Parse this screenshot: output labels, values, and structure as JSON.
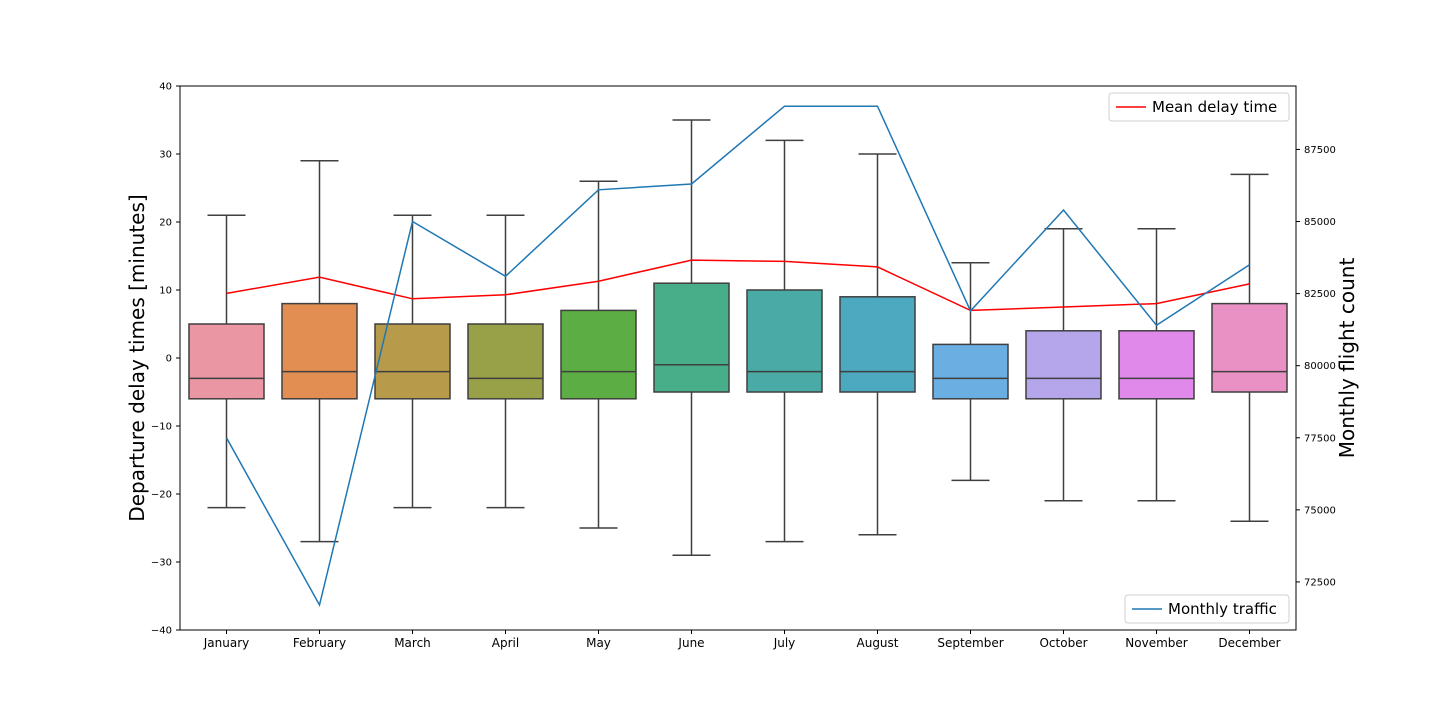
{
  "chart_data": {
    "type": "box",
    "categories": [
      "January",
      "February",
      "March",
      "April",
      "May",
      "June",
      "July",
      "August",
      "September",
      "October",
      "November",
      "December"
    ],
    "ylabel": "Departure delay times [minutes]",
    "y2label": "Monthly flight count",
    "ylim": [
      -40,
      40
    ],
    "y2lim": [
      70833,
      89700
    ],
    "yticks": [
      -40,
      -30,
      -20,
      -10,
      0,
      10,
      20,
      30,
      40
    ],
    "y2ticks": [
      72500,
      75000,
      77500,
      80000,
      82500,
      85000,
      87500
    ],
    "box_colors": [
      "#EA96A3",
      "#E28E52",
      "#B89A4B",
      "#98A147",
      "#5CAE44",
      "#48AE8A",
      "#4AAAA5",
      "#4CA9BF",
      "#6AAEE2",
      "#B5A6EC",
      "#E089EB",
      "#E991C4"
    ],
    "boxes": [
      {
        "whislo": -22,
        "q1": -6,
        "med": -3,
        "q3": 5,
        "whishi": 21
      },
      {
        "whislo": -27,
        "q1": -6,
        "med": -2,
        "q3": 8,
        "whishi": 29
      },
      {
        "whislo": -22,
        "q1": -6,
        "med": -2,
        "q3": 5,
        "whishi": 21
      },
      {
        "whislo": -22,
        "q1": -6,
        "med": -3,
        "q3": 5,
        "whishi": 21
      },
      {
        "whislo": -25,
        "q1": -6,
        "med": -2,
        "q3": 7,
        "whishi": 26
      },
      {
        "whislo": -29,
        "q1": -5,
        "med": -1,
        "q3": 11,
        "whishi": 35
      },
      {
        "whislo": -27,
        "q1": -5,
        "med": -2,
        "q3": 10,
        "whishi": 32
      },
      {
        "whislo": -26,
        "q1": -5,
        "med": -2,
        "q3": 9,
        "whishi": 30
      },
      {
        "whislo": -18,
        "q1": -6,
        "med": -3,
        "q3": 2,
        "whishi": 14
      },
      {
        "whislo": -21,
        "q1": -6,
        "med": -3,
        "q3": 4,
        "whishi": 19
      },
      {
        "whislo": -21,
        "q1": -6,
        "med": -3,
        "q3": 4,
        "whishi": 19
      },
      {
        "whislo": -24,
        "q1": -5,
        "med": -2,
        "q3": 8,
        "whishi": 27
      }
    ],
    "series": [
      {
        "name": "Mean delay time",
        "axis": "left",
        "color": "#FF0000",
        "values": [
          9.5,
          11.9,
          8.7,
          9.3,
          11.3,
          14.4,
          14.2,
          13.4,
          7.0,
          7.5,
          8.0,
          10.9
        ]
      },
      {
        "name": "Monthly traffic",
        "axis": "right",
        "color": "#1F77B4",
        "values": [
          77500,
          71700,
          85000,
          83100,
          86100,
          86300,
          89000,
          89000,
          81900,
          85400,
          81400,
          83500
        ]
      }
    ],
    "legends": [
      {
        "series": "Mean delay time",
        "position": "upper-right"
      },
      {
        "series": "Monthly traffic",
        "position": "lower-right"
      }
    ]
  }
}
